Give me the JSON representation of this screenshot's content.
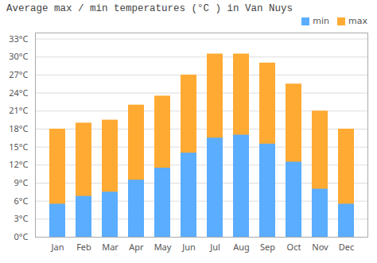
{
  "chart_data": {
    "type": "bar",
    "title": "Average max / min temperatures (°C ) in Van Nuys",
    "categories": [
      "Jan",
      "Feb",
      "Mar",
      "Apr",
      "May",
      "Jun",
      "Jul",
      "Aug",
      "Sep",
      "Oct",
      "Nov",
      "Dec"
    ],
    "series": [
      {
        "name": "min",
        "color": "#5aadff",
        "values": [
          5.5,
          6.8,
          7.5,
          9.5,
          11.5,
          14.0,
          16.5,
          17.0,
          15.5,
          12.5,
          8.0,
          5.5
        ]
      },
      {
        "name": "max",
        "color": "#ffaa33",
        "values": [
          18.0,
          19.0,
          19.5,
          22.0,
          23.5,
          27.0,
          30.5,
          30.5,
          29.0,
          25.5,
          21.0,
          18.0
        ]
      }
    ],
    "stacked": false,
    "ylim": [
      0,
      34
    ],
    "yticks": [
      {
        "value": 0,
        "label": "0°C"
      },
      {
        "value": 3,
        "label": "3°C"
      },
      {
        "value": 6,
        "label": "6°C"
      },
      {
        "value": 9,
        "label": "9°C"
      },
      {
        "value": 12,
        "label": "12°C"
      },
      {
        "value": 15,
        "label": "15°C"
      },
      {
        "value": 18,
        "label": "18°C"
      },
      {
        "value": 21,
        "label": "21°C"
      },
      {
        "value": 24,
        "label": "24°C"
      },
      {
        "value": 27,
        "label": "27°C"
      },
      {
        "value": 30,
        "label": "30°C"
      },
      {
        "value": 33,
        "label": "33°C"
      }
    ],
    "grid": true,
    "legend": "upper right"
  }
}
